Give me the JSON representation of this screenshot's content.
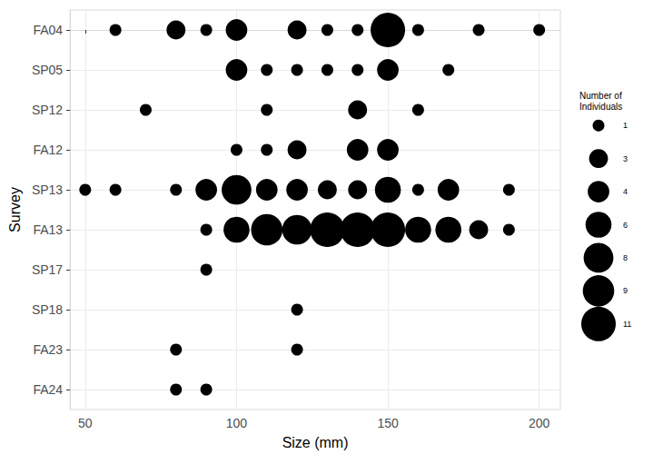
{
  "chart_data": {
    "type": "scatter",
    "x_label": "Size (mm)",
    "y_label": "Survey",
    "categories": [
      "FA04",
      "SP05",
      "SP12",
      "FA12",
      "SP13",
      "FA13",
      "SP17",
      "SP18",
      "FA23",
      "FA24"
    ],
    "x": [
      60,
      80,
      90,
      100,
      120,
      130,
      140,
      150,
      160,
      180,
      200,
      100,
      110,
      120,
      130,
      140,
      150,
      170,
      70,
      110,
      140,
      160,
      100,
      110,
      120,
      140,
      150,
      50,
      60,
      80,
      90,
      100,
      110,
      120,
      130,
      140,
      150,
      160,
      170,
      190,
      90,
      100,
      110,
      120,
      130,
      140,
      150,
      160,
      170,
      180,
      190,
      90,
      120,
      80,
      120,
      80,
      90
    ],
    "y": [
      "FA04",
      "FA04",
      "FA04",
      "FA04",
      "FA04",
      "FA04",
      "FA04",
      "FA04",
      "FA04",
      "FA04",
      "FA04",
      "SP05",
      "SP05",
      "SP05",
      "SP05",
      "SP05",
      "SP05",
      "SP05",
      "SP12",
      "SP12",
      "SP12",
      "SP12",
      "FA12",
      "FA12",
      "FA12",
      "FA12",
      "FA12",
      "SP13",
      "SP13",
      "SP13",
      "SP13",
      "SP13",
      "SP13",
      "SP13",
      "SP13",
      "SP13",
      "SP13",
      "SP13",
      "SP13",
      "SP13",
      "FA13",
      "FA13",
      "FA13",
      "FA13",
      "FA13",
      "FA13",
      "FA13",
      "FA13",
      "FA13",
      "FA13",
      "FA13",
      "SP17",
      "SP18",
      "FA23",
      "FA23",
      "FA24",
      "FA24"
    ],
    "sizes": [
      1,
      3,
      1,
      4,
      3,
      1,
      1,
      11,
      1,
      1,
      1,
      4,
      1,
      1,
      1,
      1,
      4,
      1,
      1,
      1,
      3,
      1,
      1,
      1,
      3,
      4,
      4,
      1,
      1,
      1,
      4,
      8,
      4,
      4,
      3,
      3,
      6,
      1,
      4,
      1,
      1,
      6,
      9,
      8,
      11,
      11,
      11,
      6,
      6,
      3,
      1,
      1,
      1,
      1,
      1,
      1,
      1
    ],
    "size_legend": {
      "title": "Number of Individuals",
      "values": [
        1,
        3,
        4,
        6,
        8,
        9,
        11
      ]
    },
    "color": "#000000",
    "xlim": [
      45,
      207
    ],
    "xticks": [
      50,
      100,
      150,
      200
    ],
    "grid": true
  }
}
